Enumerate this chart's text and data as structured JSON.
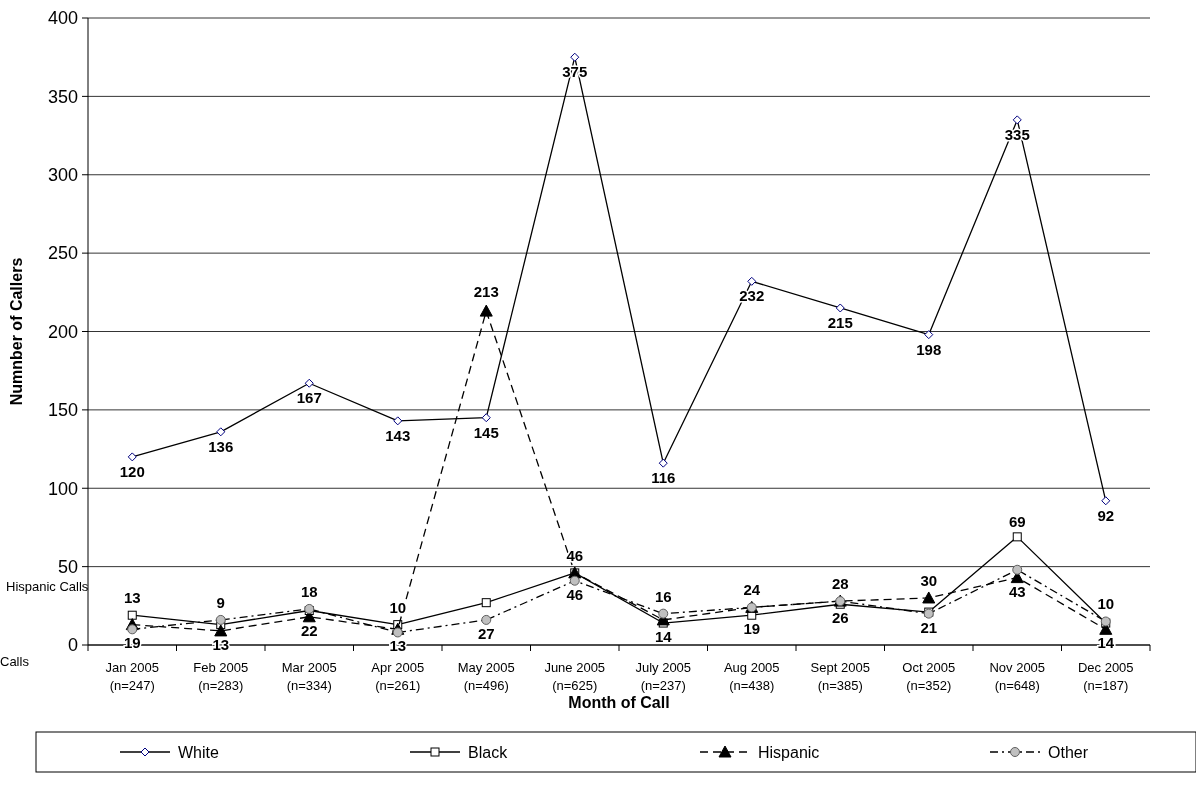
{
  "chart_data": {
    "type": "line",
    "xlabel": "Month of Call",
    "ylabel": "Numnber of Callers",
    "categories": [
      "Jan 2005\n(n=247)",
      "Feb 2005\n(n=283)",
      "Mar 2005\n(n=334)",
      "Apr 2005\n(n=261)",
      "May 2005\n(n=496)",
      "June 2005\n(n=625)",
      "July 2005\n(n=237)",
      "Aug 2005\n(n=438)",
      "Sept 2005\n(n=385)",
      "Oct 2005\n(n=352)",
      "Nov 2005\n(n=648)",
      "Dec 2005\n(n=187)"
    ],
    "series": [
      {
        "name": "White",
        "color": "#000000",
        "marker": "diamond",
        "line_style": "solid",
        "values": [
          120,
          136,
          167,
          143,
          145,
          375,
          116,
          232,
          215,
          198,
          335,
          92
        ],
        "value_labels": [
          "120",
          "136",
          "167",
          "143",
          "145",
          "375",
          "116",
          "232",
          "215",
          "198",
          "335",
          "92"
        ]
      },
      {
        "name": "Black",
        "color": "#000000",
        "marker": "square",
        "line_style": "solid",
        "values": [
          19,
          13,
          22,
          13,
          27,
          46,
          14,
          19,
          26,
          21,
          69,
          14
        ],
        "value_labels": [
          "19",
          "13",
          "22",
          "13",
          "27",
          "46",
          "14",
          "19",
          "26",
          "21",
          "69",
          "14"
        ]
      },
      {
        "name": "Hispanic",
        "color": "#000000",
        "marker": "triangle",
        "line_style": "dashed",
        "values": [
          13,
          9,
          18,
          10,
          213,
          46,
          16,
          24,
          28,
          30,
          43,
          10
        ],
        "value_labels": [
          "13",
          "9",
          "18",
          "10",
          "213",
          "46",
          "16",
          "24",
          "28",
          "30",
          "43",
          "10"
        ]
      },
      {
        "name": "Other",
        "color": "#000000",
        "marker": "circle",
        "line_style": "dashdot",
        "values": [
          10,
          16,
          23,
          8,
          16,
          41,
          20,
          24,
          28,
          20,
          48,
          15
        ]
      }
    ],
    "ylim": [
      0,
      400
    ],
    "yticks": [
      0,
      50,
      100,
      150,
      200,
      250,
      300,
      350,
      400
    ],
    "grid": "y",
    "legend": "bottom",
    "annotations": [
      "Hispanic Calls",
      "Calls"
    ]
  }
}
